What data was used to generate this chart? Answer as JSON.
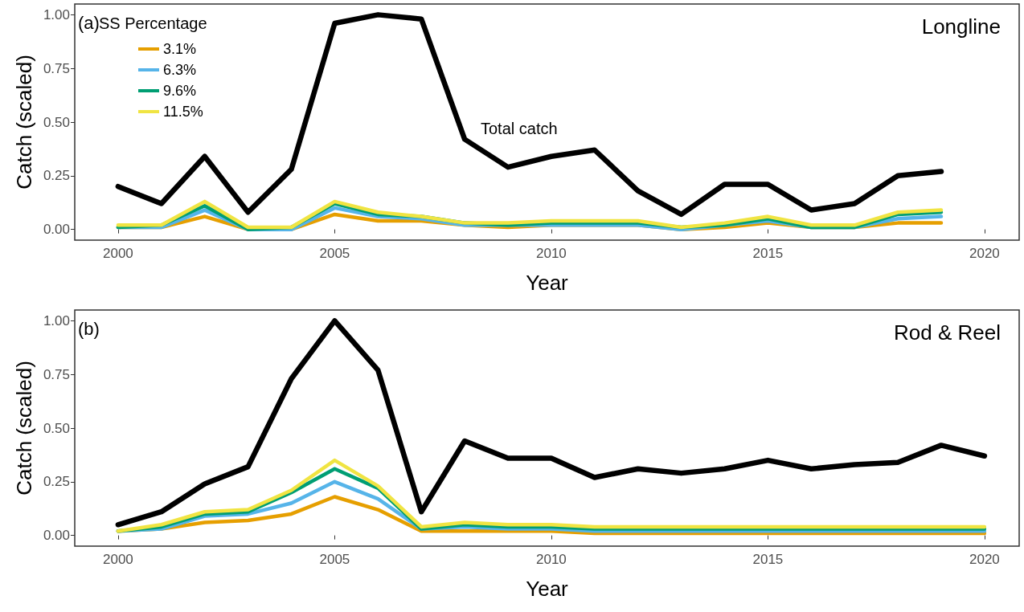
{
  "chart_data": [
    {
      "type": "line",
      "title": "Longline",
      "xlabel": "Year",
      "ylabel": "Catch (scaled)",
      "legend_title": "SS Percentage",
      "legend": "top left",
      "grid": false,
      "line_style": "solid",
      "marker": "none",
      "x": [
        2000,
        2001,
        2002,
        2003,
        2004,
        2005,
        2006,
        2007,
        2008,
        2009,
        2010,
        2011,
        2012,
        2013,
        2014,
        2015,
        2016,
        2017,
        2018,
        2019
      ],
      "xlim": [
        1999,
        2020.8
      ],
      "xticks": [
        2000,
        2005,
        2010,
        2015,
        2020
      ],
      "ylim": [
        -0.05,
        1.05
      ],
      "yticks": [
        {
          "value": 0,
          "label": "0.00"
        },
        {
          "value": 0.25,
          "label": "0.25"
        },
        {
          "value": 0.5,
          "label": "0.50"
        },
        {
          "value": 0.75,
          "label": "0.75"
        },
        {
          "value": 1,
          "label": "1.00"
        }
      ],
      "series": [
        {
          "name": "3.1%",
          "color": "#e69f00",
          "values": [
            0.01,
            0.01,
            0.06,
            0.0,
            0.0,
            0.07,
            0.04,
            0.04,
            0.02,
            0.01,
            0.02,
            0.02,
            0.02,
            0.0,
            0.01,
            0.03,
            0.01,
            0.01,
            0.03,
            0.03
          ]
        },
        {
          "name": "6.3%",
          "color": "#56b4e9",
          "values": [
            0.01,
            0.01,
            0.09,
            0.0,
            0.0,
            0.1,
            0.06,
            0.05,
            0.02,
            0.02,
            0.02,
            0.02,
            0.02,
            0.0,
            0.02,
            0.04,
            0.01,
            0.01,
            0.05,
            0.06
          ]
        },
        {
          "name": "9.6%",
          "color": "#009e73",
          "values": [
            0.01,
            0.02,
            0.11,
            0.0,
            0.01,
            0.12,
            0.07,
            0.06,
            0.03,
            0.02,
            0.03,
            0.03,
            0.03,
            0.01,
            0.02,
            0.05,
            0.01,
            0.01,
            0.07,
            0.08
          ]
        },
        {
          "name": "11.5%",
          "color": "#f0e442",
          "values": [
            0.02,
            0.02,
            0.13,
            0.01,
            0.01,
            0.13,
            0.08,
            0.06,
            0.03,
            0.03,
            0.04,
            0.04,
            0.04,
            0.01,
            0.03,
            0.06,
            0.02,
            0.02,
            0.08,
            0.09
          ]
        },
        {
          "color": "#000000",
          "values": [
            0.2,
            0.12,
            0.34,
            0.08,
            0.28,
            0.96,
            1.0,
            0.98,
            0.42,
            0.29,
            0.34,
            0.37,
            0.18,
            0.07,
            0.21,
            0.21,
            0.09,
            0.12,
            0.25,
            0.27
          ]
        }
      ],
      "annotations": [
        "(a)",
        "Total catch"
      ]
    },
    {
      "type": "line",
      "title": "Rod & Reel",
      "xlabel": "Year",
      "ylabel": "Catch (scaled)",
      "legend": false,
      "grid": false,
      "line_style": "solid",
      "marker": "none",
      "x": [
        2000,
        2001,
        2002,
        2003,
        2004,
        2005,
        2006,
        2007,
        2008,
        2009,
        2010,
        2011,
        2012,
        2013,
        2014,
        2015,
        2016,
        2017,
        2018,
        2019,
        2020
      ],
      "xlim": [
        1999,
        2020.8
      ],
      "xticks": [
        2000,
        2005,
        2010,
        2015,
        2020
      ],
      "ylim": [
        -0.05,
        1.05
      ],
      "yticks": [
        {
          "value": 0,
          "label": "0.00"
        },
        {
          "value": 0.25,
          "label": "0.25"
        },
        {
          "value": 0.5,
          "label": "0.50"
        },
        {
          "value": 0.75,
          "label": "0.75"
        },
        {
          "value": 1,
          "label": "1.00"
        }
      ],
      "series": [
        {
          "color": "#e69f00",
          "values": [
            0.02,
            0.03,
            0.06,
            0.07,
            0.1,
            0.18,
            0.12,
            0.02,
            0.02,
            0.02,
            0.02,
            0.01,
            0.01,
            0.01,
            0.01,
            0.01,
            0.01,
            0.01,
            0.01,
            0.01,
            0.01
          ]
        },
        {
          "color": "#56b4e9",
          "values": [
            0.02,
            0.03,
            0.09,
            0.1,
            0.15,
            0.25,
            0.17,
            0.03,
            0.04,
            0.03,
            0.03,
            0.02,
            0.02,
            0.02,
            0.02,
            0.02,
            0.02,
            0.02,
            0.02,
            0.02,
            0.02
          ]
        },
        {
          "color": "#009e73",
          "values": [
            0.02,
            0.04,
            0.1,
            0.11,
            0.2,
            0.31,
            0.22,
            0.03,
            0.05,
            0.04,
            0.04,
            0.03,
            0.03,
            0.03,
            0.03,
            0.03,
            0.03,
            0.03,
            0.03,
            0.03,
            0.03
          ]
        },
        {
          "color": "#f0e442",
          "values": [
            0.02,
            0.05,
            0.11,
            0.12,
            0.21,
            0.35,
            0.23,
            0.04,
            0.06,
            0.05,
            0.05,
            0.04,
            0.04,
            0.04,
            0.04,
            0.04,
            0.04,
            0.04,
            0.04,
            0.04,
            0.04
          ]
        },
        {
          "color": "#000000",
          "values": [
            0.05,
            0.11,
            0.24,
            0.32,
            0.73,
            1.0,
            0.77,
            0.11,
            0.44,
            0.36,
            0.36,
            0.27,
            0.31,
            0.29,
            0.31,
            0.35,
            0.31,
            0.33,
            0.34,
            0.42,
            0.37
          ]
        }
      ],
      "annotations": [
        "(b)"
      ]
    }
  ]
}
